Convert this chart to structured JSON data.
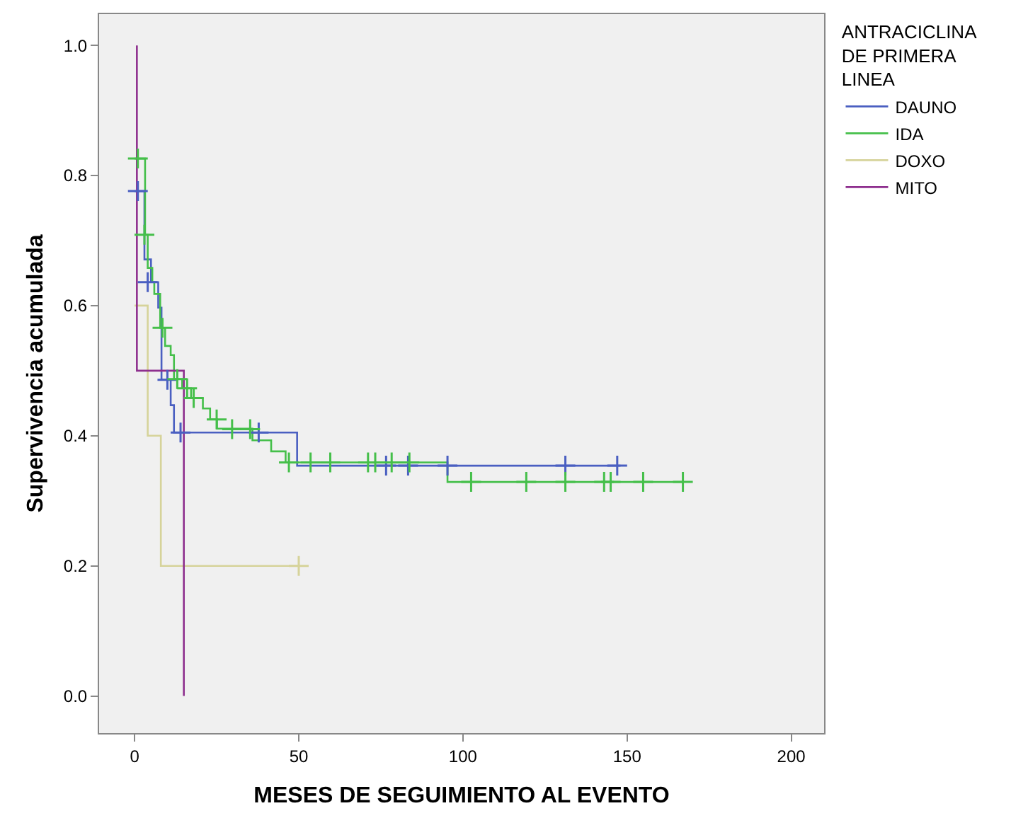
{
  "chart_data": {
    "type": "step",
    "xlabel": "MESES DE SEGUIMIENTO AL EVENTO",
    "ylabel": "Supervivencia acumulada",
    "legend_title": "ANTRACICLINA\nDE PRIMERA\nLINEA",
    "xlim": [
      -10.8,
      210
    ],
    "xticks": [
      0,
      50,
      100,
      150,
      200
    ],
    "ylim": [
      -0.057,
      1.048
    ],
    "yticks": [
      {
        "value": 0,
        "label": "0.0"
      },
      0.2,
      0.4,
      0.6,
      0.8,
      {
        "value": 1,
        "label": "1.0"
      }
    ],
    "grid": false,
    "legend": "top right",
    "marker": "none",
    "line_style": "solid",
    "series": [
      {
        "name": "DAUNO",
        "color": "#4a5fc1",
        "x": [
          0,
          3,
          5,
          7.2,
          8.2,
          11,
          12,
          49.5,
          148
        ],
        "values": [
          0.776,
          0.671,
          0.636,
          0.597,
          0.486,
          0.447,
          0.405,
          0.354,
          0.354
        ]
      },
      {
        "name": "IDA",
        "color": "#45bf4a",
        "x": [
          0,
          3.2,
          4,
          5.4,
          6,
          7.8,
          9.3,
          11,
          12,
          14.5,
          17.2,
          20.8,
          23,
          25.1,
          35.9,
          41.6,
          46,
          95.3,
          167
        ],
        "values": [
          0.826,
          0.709,
          0.658,
          0.636,
          0.618,
          0.566,
          0.538,
          0.524,
          0.487,
          0.473,
          0.458,
          0.442,
          0.425,
          0.411,
          0.393,
          0.376,
          0.359,
          0.329,
          0.329
        ]
      },
      {
        "name": "DOXO",
        "color": "#d6d39a",
        "x": [
          0,
          4,
          8,
          50
        ],
        "values": [
          0.6,
          0.4,
          0.2,
          0.2
        ]
      },
      {
        "name": "MITO",
        "color": "#8e2f8e",
        "x": [
          0.7,
          0.7,
          15
        ],
        "values": [
          1.0,
          0.5,
          0.0
        ]
      },
      {
        "type": "scatter",
        "marker": "cross",
        "color": "#4a5fc1",
        "x": [
          1,
          4,
          10,
          14,
          37.8,
          76.6,
          83.3,
          95.3,
          131.2,
          147
        ],
        "values": [
          0.776,
          0.636,
          0.486,
          0.405,
          0.405,
          0.354,
          0.354,
          0.354,
          0.354,
          0.354
        ]
      },
      {
        "type": "scatter",
        "marker": "cross",
        "color": "#45bf4a",
        "x": [
          1,
          3,
          8.5,
          13,
          16,
          18,
          25,
          29.7,
          35.2,
          47,
          53.6,
          59.6,
          71.1,
          73.3,
          78.3,
          83.7,
          102.5,
          119.3,
          131.2,
          143,
          145,
          154.9,
          167
        ],
        "values": [
          0.826,
          0.709,
          0.566,
          0.487,
          0.473,
          0.458,
          0.425,
          0.41,
          0.41,
          0.359,
          0.359,
          0.359,
          0.359,
          0.359,
          0.359,
          0.359,
          0.329,
          0.329,
          0.329,
          0.329,
          0.329,
          0.329,
          0.329
        ]
      },
      {
        "type": "scatter",
        "marker": "cross",
        "color": "#d6d39a",
        "x": [
          50
        ],
        "values": [
          0.2
        ]
      }
    ]
  }
}
